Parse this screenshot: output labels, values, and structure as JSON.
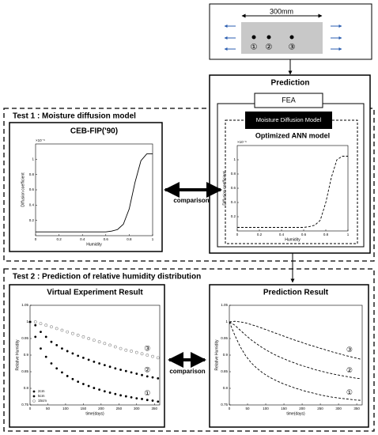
{
  "top_specimen": {
    "dimension": "300mm",
    "points": [
      "①",
      "②",
      "③"
    ]
  },
  "prediction": {
    "title": "Prediction",
    "fea": "FEA",
    "model": "Moisture Diffusion Model"
  },
  "test1": {
    "title": "Test 1 : Moisture diffusion model",
    "comparison": "comparison"
  },
  "test2": {
    "title": "Test 2 : Prediction of relative humidity distribution",
    "comparison": "comparison"
  },
  "charts": [
    {
      "type": "line",
      "title": "CEB-FIP('90)",
      "x_label": "Humidity",
      "y_label": "Diffusion coefficient",
      "y_multiplier": "×10⁻⁶",
      "xlim": [
        0,
        1
      ],
      "ylim": [
        0,
        1.2
      ],
      "xticks": [
        0,
        0.2,
        0.4,
        0.6,
        0.8,
        1
      ],
      "yticks": [
        0.2,
        0.4,
        0.6,
        0.8,
        1
      ],
      "x": [
        0,
        0.2,
        0.4,
        0.6,
        0.65,
        0.7,
        0.75,
        0.8,
        0.85,
        0.9,
        0.95,
        1
      ],
      "series": [
        {
          "color": "#000000",
          "dash": false,
          "values": [
            0.05,
            0.05,
            0.05,
            0.05,
            0.06,
            0.08,
            0.15,
            0.35,
            0.7,
            0.98,
            1.07,
            1.07
          ]
        }
      ]
    },
    {
      "type": "line",
      "title": "Optimized ANN model",
      "x_label": "Humidity",
      "y_label": "Diffusion coefficient",
      "y_multiplier": "×10⁻⁶",
      "xlim": [
        0,
        1
      ],
      "ylim": [
        0,
        1.2
      ],
      "xticks": [
        0,
        0.2,
        0.4,
        0.6,
        0.8,
        1
      ],
      "yticks": [
        0.2,
        0.4,
        0.6,
        0.8,
        1
      ],
      "x": [
        0,
        0.2,
        0.4,
        0.6,
        0.65,
        0.7,
        0.75,
        0.8,
        0.85,
        0.9,
        0.95,
        1
      ],
      "series": [
        {
          "color": "#000000",
          "dash": true,
          "values": [
            0.05,
            0.05,
            0.05,
            0.05,
            0.06,
            0.08,
            0.15,
            0.4,
            0.75,
            1.0,
            1.05,
            1.05
          ]
        }
      ]
    },
    {
      "type": "scatter",
      "title": "Virtual Experiment Result",
      "x_label": "time(days)",
      "y_label": "Relative Humidity",
      "xlim": [
        0,
        365
      ],
      "ylim": [
        0.75,
        1.05
      ],
      "xticks": [
        0,
        50,
        100,
        150,
        200,
        250,
        300,
        350
      ],
      "yticks": [
        0.75,
        0.8,
        0.85,
        0.9,
        0.95,
        1,
        1.05
      ],
      "legend": "lower left",
      "annotations": [
        "①",
        "②",
        "③"
      ],
      "x": [
        0,
        15,
        30,
        45,
        60,
        75,
        90,
        105,
        120,
        135,
        150,
        165,
        180,
        195,
        210,
        225,
        240,
        255,
        270,
        285,
        300,
        315,
        330,
        345,
        360
      ],
      "series": [
        {
          "name": "2cm",
          "color": "#000000",
          "marker": "dot",
          "values": [
            1.0,
            0.955,
            0.92,
            0.895,
            0.875,
            0.86,
            0.848,
            0.837,
            0.828,
            0.82,
            0.813,
            0.807,
            0.801,
            0.796,
            0.791,
            0.787,
            0.783,
            0.779,
            0.776,
            0.773,
            0.77,
            0.768,
            0.765,
            0.763,
            0.76
          ]
        },
        {
          "name": "5cm",
          "color": "#000000",
          "marker": "dot",
          "values": [
            1.0,
            0.99,
            0.97,
            0.955,
            0.94,
            0.93,
            0.92,
            0.912,
            0.905,
            0.898,
            0.892,
            0.886,
            0.88,
            0.875,
            0.87,
            0.865,
            0.86,
            0.856,
            0.852,
            0.848,
            0.844,
            0.84,
            0.836,
            0.833,
            0.83
          ]
        },
        {
          "name": "15cm",
          "color": "#888888",
          "marker": "circle",
          "values": [
            1.0,
            1.0,
            0.995,
            0.99,
            0.985,
            0.98,
            0.975,
            0.97,
            0.965,
            0.96,
            0.955,
            0.95,
            0.945,
            0.94,
            0.935,
            0.93,
            0.925,
            0.92,
            0.915,
            0.912,
            0.908,
            0.904,
            0.9,
            0.896,
            0.892
          ]
        }
      ]
    },
    {
      "type": "line",
      "title": "Prediction Result",
      "x_label": "time(days)",
      "y_label": "Relative Humidity",
      "xlim": [
        0,
        365
      ],
      "ylim": [
        0.75,
        1.05
      ],
      "xticks": [
        0,
        50,
        100,
        150,
        200,
        250,
        300,
        350
      ],
      "yticks": [
        0.75,
        0.8,
        0.85,
        0.9,
        0.95,
        1,
        1.05
      ],
      "annotations": [
        "①",
        "②",
        "③"
      ],
      "x": [
        0,
        15,
        30,
        45,
        60,
        75,
        90,
        105,
        120,
        135,
        150,
        165,
        180,
        195,
        210,
        225,
        240,
        255,
        270,
        285,
        300,
        315,
        330,
        345,
        360
      ],
      "series": [
        {
          "color": "#000000",
          "dash": true,
          "values": [
            1.0,
            0.96,
            0.925,
            0.898,
            0.877,
            0.861,
            0.848,
            0.837,
            0.828,
            0.82,
            0.813,
            0.807,
            0.801,
            0.796,
            0.791,
            0.787,
            0.783,
            0.779,
            0.776,
            0.773,
            0.771,
            0.769,
            0.767,
            0.765,
            0.764
          ]
        },
        {
          "color": "#000000",
          "dash": true,
          "values": [
            1.0,
            0.99,
            0.975,
            0.96,
            0.946,
            0.934,
            0.923,
            0.913,
            0.904,
            0.896,
            0.889,
            0.882,
            0.876,
            0.87,
            0.865,
            0.86,
            0.855,
            0.851,
            0.847,
            0.843,
            0.84,
            0.837,
            0.834,
            0.831,
            0.829
          ]
        },
        {
          "color": "#000000",
          "dash": true,
          "values": [
            1.0,
            1.002,
            1.0,
            0.997,
            0.992,
            0.987,
            0.981,
            0.975,
            0.969,
            0.963,
            0.957,
            0.951,
            0.945,
            0.94,
            0.934,
            0.929,
            0.924,
            0.919,
            0.914,
            0.909,
            0.905,
            0.9,
            0.896,
            0.892,
            0.888
          ]
        }
      ]
    }
  ]
}
